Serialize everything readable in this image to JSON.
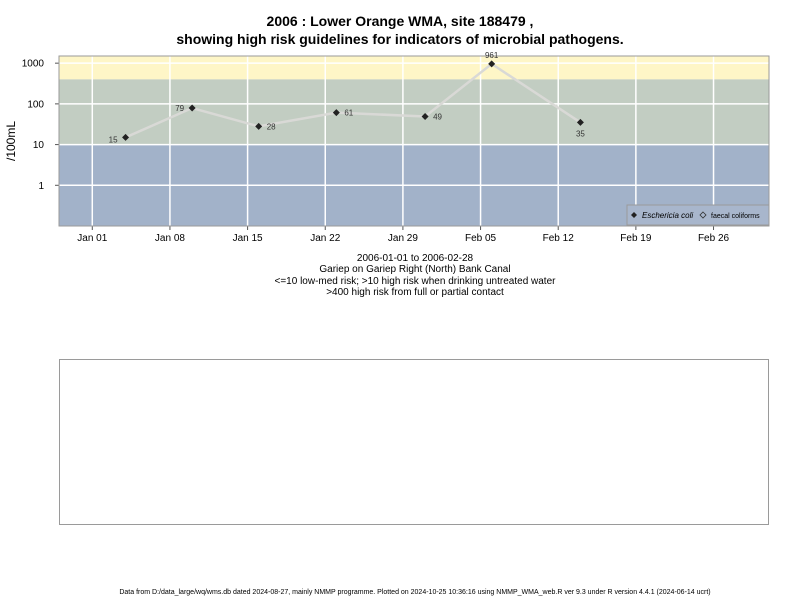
{
  "title_line1": "2006 : Lower Orange WMA, site 188479 ,",
  "title_line2": "showing high risk guidelines for indicators of microbial pathogens.",
  "captions": {
    "date_range": "2006-01-01 to 2006-02-28",
    "site_name": "Gariep on Gariep Right (North) Bank Canal",
    "risk_low": "<=10 low-med risk; >10 high risk when drinking untreated water",
    "risk_high": ">400 high risk from full or partial contact"
  },
  "footer": "Data from D:/data_large/wq/wms.db dated 2024-08-27, mainly NMMP programme. Plotted on 2024-10-25 10:36:16 using NMMP_WMA_web.R ver 9.3 under R version 4.4.1 (2024-06-14 ucrt)",
  "colors": {
    "band_high": "#fef6c7",
    "band_mid": "#c2cdc2",
    "band_low": "#a2b2c9",
    "line": "#d9d9d6",
    "point": "#222222"
  },
  "chart_data": {
    "type": "line",
    "ylabel": "/100mL",
    "yscale": "log",
    "ylim": [
      0.1,
      1500
    ],
    "y_ticks": [
      1,
      10,
      100,
      1000
    ],
    "y_tick_labels": [
      "1",
      "10",
      "100",
      "1000"
    ],
    "xlim": [
      "2005-12-29",
      "2006-03-03"
    ],
    "x_ticks": [
      "2006-01-01",
      "2006-01-08",
      "2006-01-15",
      "2006-01-22",
      "2006-01-29",
      "2006-02-05",
      "2006-02-12",
      "2006-02-19",
      "2006-02-26"
    ],
    "x_tick_labels": [
      "Jan 01",
      "Jan 08",
      "Jan 15",
      "Jan 22",
      "Jan 29",
      "Feb 05",
      "Feb 12",
      "Feb 19",
      "Feb 26"
    ],
    "risk_bands": [
      {
        "from": 400,
        "to": 1500,
        "color": "#fef6c7"
      },
      {
        "from": 10,
        "to": 400,
        "color": "#c2cdc2"
      },
      {
        "from": 0.1,
        "to": 10,
        "color": "#a2b2c9"
      }
    ],
    "grid": true,
    "legend_position": "bottom-right",
    "series": [
      {
        "name": "Eschericia coli",
        "x": [
          "2006-01-04",
          "2006-01-10",
          "2006-01-16",
          "2006-01-23",
          "2006-01-31",
          "2006-02-06",
          "2006-02-14"
        ],
        "values": [
          15,
          79,
          28,
          61,
          49,
          961,
          35
        ],
        "labels": [
          "15",
          "79",
          "28",
          "61",
          "49",
          "961",
          "35"
        ],
        "label_sides": [
          "left",
          "left",
          "right",
          "right",
          "right",
          "top",
          "bottom"
        ]
      }
    ],
    "legend": [
      "Eschericia coli",
      "faecal coliforms"
    ]
  }
}
